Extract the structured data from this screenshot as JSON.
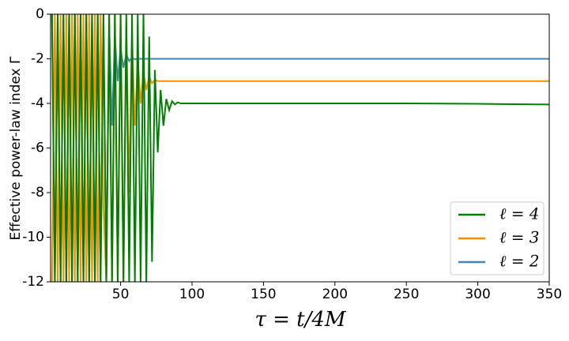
{
  "chart_data": {
    "type": "line",
    "xlabel": "τ = t/4M",
    "ylabel": "Effective power-law index Γ",
    "x": [
      2,
      4,
      6,
      8,
      10,
      12,
      14,
      16,
      18,
      20,
      22,
      24,
      26,
      28,
      30,
      32,
      34,
      36,
      38,
      40,
      42,
      44,
      46,
      48,
      50,
      52,
      54,
      56,
      58,
      60,
      62,
      64,
      66,
      68,
      70,
      72,
      74,
      76,
      78,
      80,
      82,
      84,
      86,
      88,
      90,
      92,
      94,
      96,
      98,
      100,
      150,
      200,
      250,
      300,
      350
    ],
    "series": [
      {
        "name": "ℓ = 4",
        "color": "#008000",
        "values": [
          0,
          -12,
          0,
          -12,
          0,
          -12,
          0,
          -12,
          0,
          -12,
          0,
          -12,
          0,
          -12,
          0,
          -12,
          0,
          -12,
          0,
          -12,
          0,
          -12,
          0,
          -12,
          0,
          -12,
          0,
          -12,
          0,
          -12,
          0,
          -12,
          0,
          -12,
          -1,
          -11.1,
          -2.5,
          -6.2,
          -3.4,
          -5,
          -3.8,
          -4.3,
          -3.9,
          -4.05,
          -3.95,
          -4,
          -4,
          -4,
          -4,
          -4,
          -4,
          -4,
          -4,
          -4.02,
          -4.05
        ]
      },
      {
        "name": "ℓ = 3",
        "color": "#ff8c00",
        "values": [
          -12,
          0,
          -12,
          0,
          -12,
          0,
          -12,
          0,
          -12,
          0,
          -12,
          0,
          -12,
          0,
          -12,
          0,
          -12,
          0,
          -8.6,
          -12,
          0,
          -12,
          0,
          -12,
          0,
          -12,
          -0.5,
          -8,
          -1,
          -5,
          -2,
          -4,
          -2.6,
          -3.4,
          -2.8,
          -3.1,
          -2.95,
          -3,
          -3,
          -3,
          -3,
          -3,
          -3,
          -3,
          -3,
          -3,
          -3,
          -3,
          -3,
          -3,
          -3,
          -3,
          -3,
          -3,
          -3
        ]
      },
      {
        "name": "ℓ = 2",
        "color": "#4682b4",
        "values": [
          0,
          -12,
          0,
          -12,
          0,
          -12,
          0,
          -12,
          0,
          -12,
          0,
          -12,
          0,
          -12,
          0,
          -12,
          0,
          -12,
          0,
          -12,
          -0.5,
          -5,
          -1,
          -3,
          -1.5,
          -2.4,
          -1.8,
          -2.1,
          -1.95,
          -2.02,
          -2,
          -2,
          -2,
          -2,
          -2,
          -2,
          -2,
          -2,
          -2,
          -2,
          -2,
          -2,
          -2,
          -2,
          -2,
          -2,
          -2,
          -2,
          -2,
          -2,
          -2,
          -2,
          -2,
          -2,
          -2
        ]
      }
    ],
    "xlim": [
      1,
      350
    ],
    "xticks": [
      50,
      100,
      150,
      200,
      250,
      300,
      350
    ],
    "ylim": [
      -12,
      0
    ],
    "yticks": [
      0,
      -2,
      -4,
      -6,
      -8,
      -10,
      -12
    ],
    "legend": "lower right"
  }
}
